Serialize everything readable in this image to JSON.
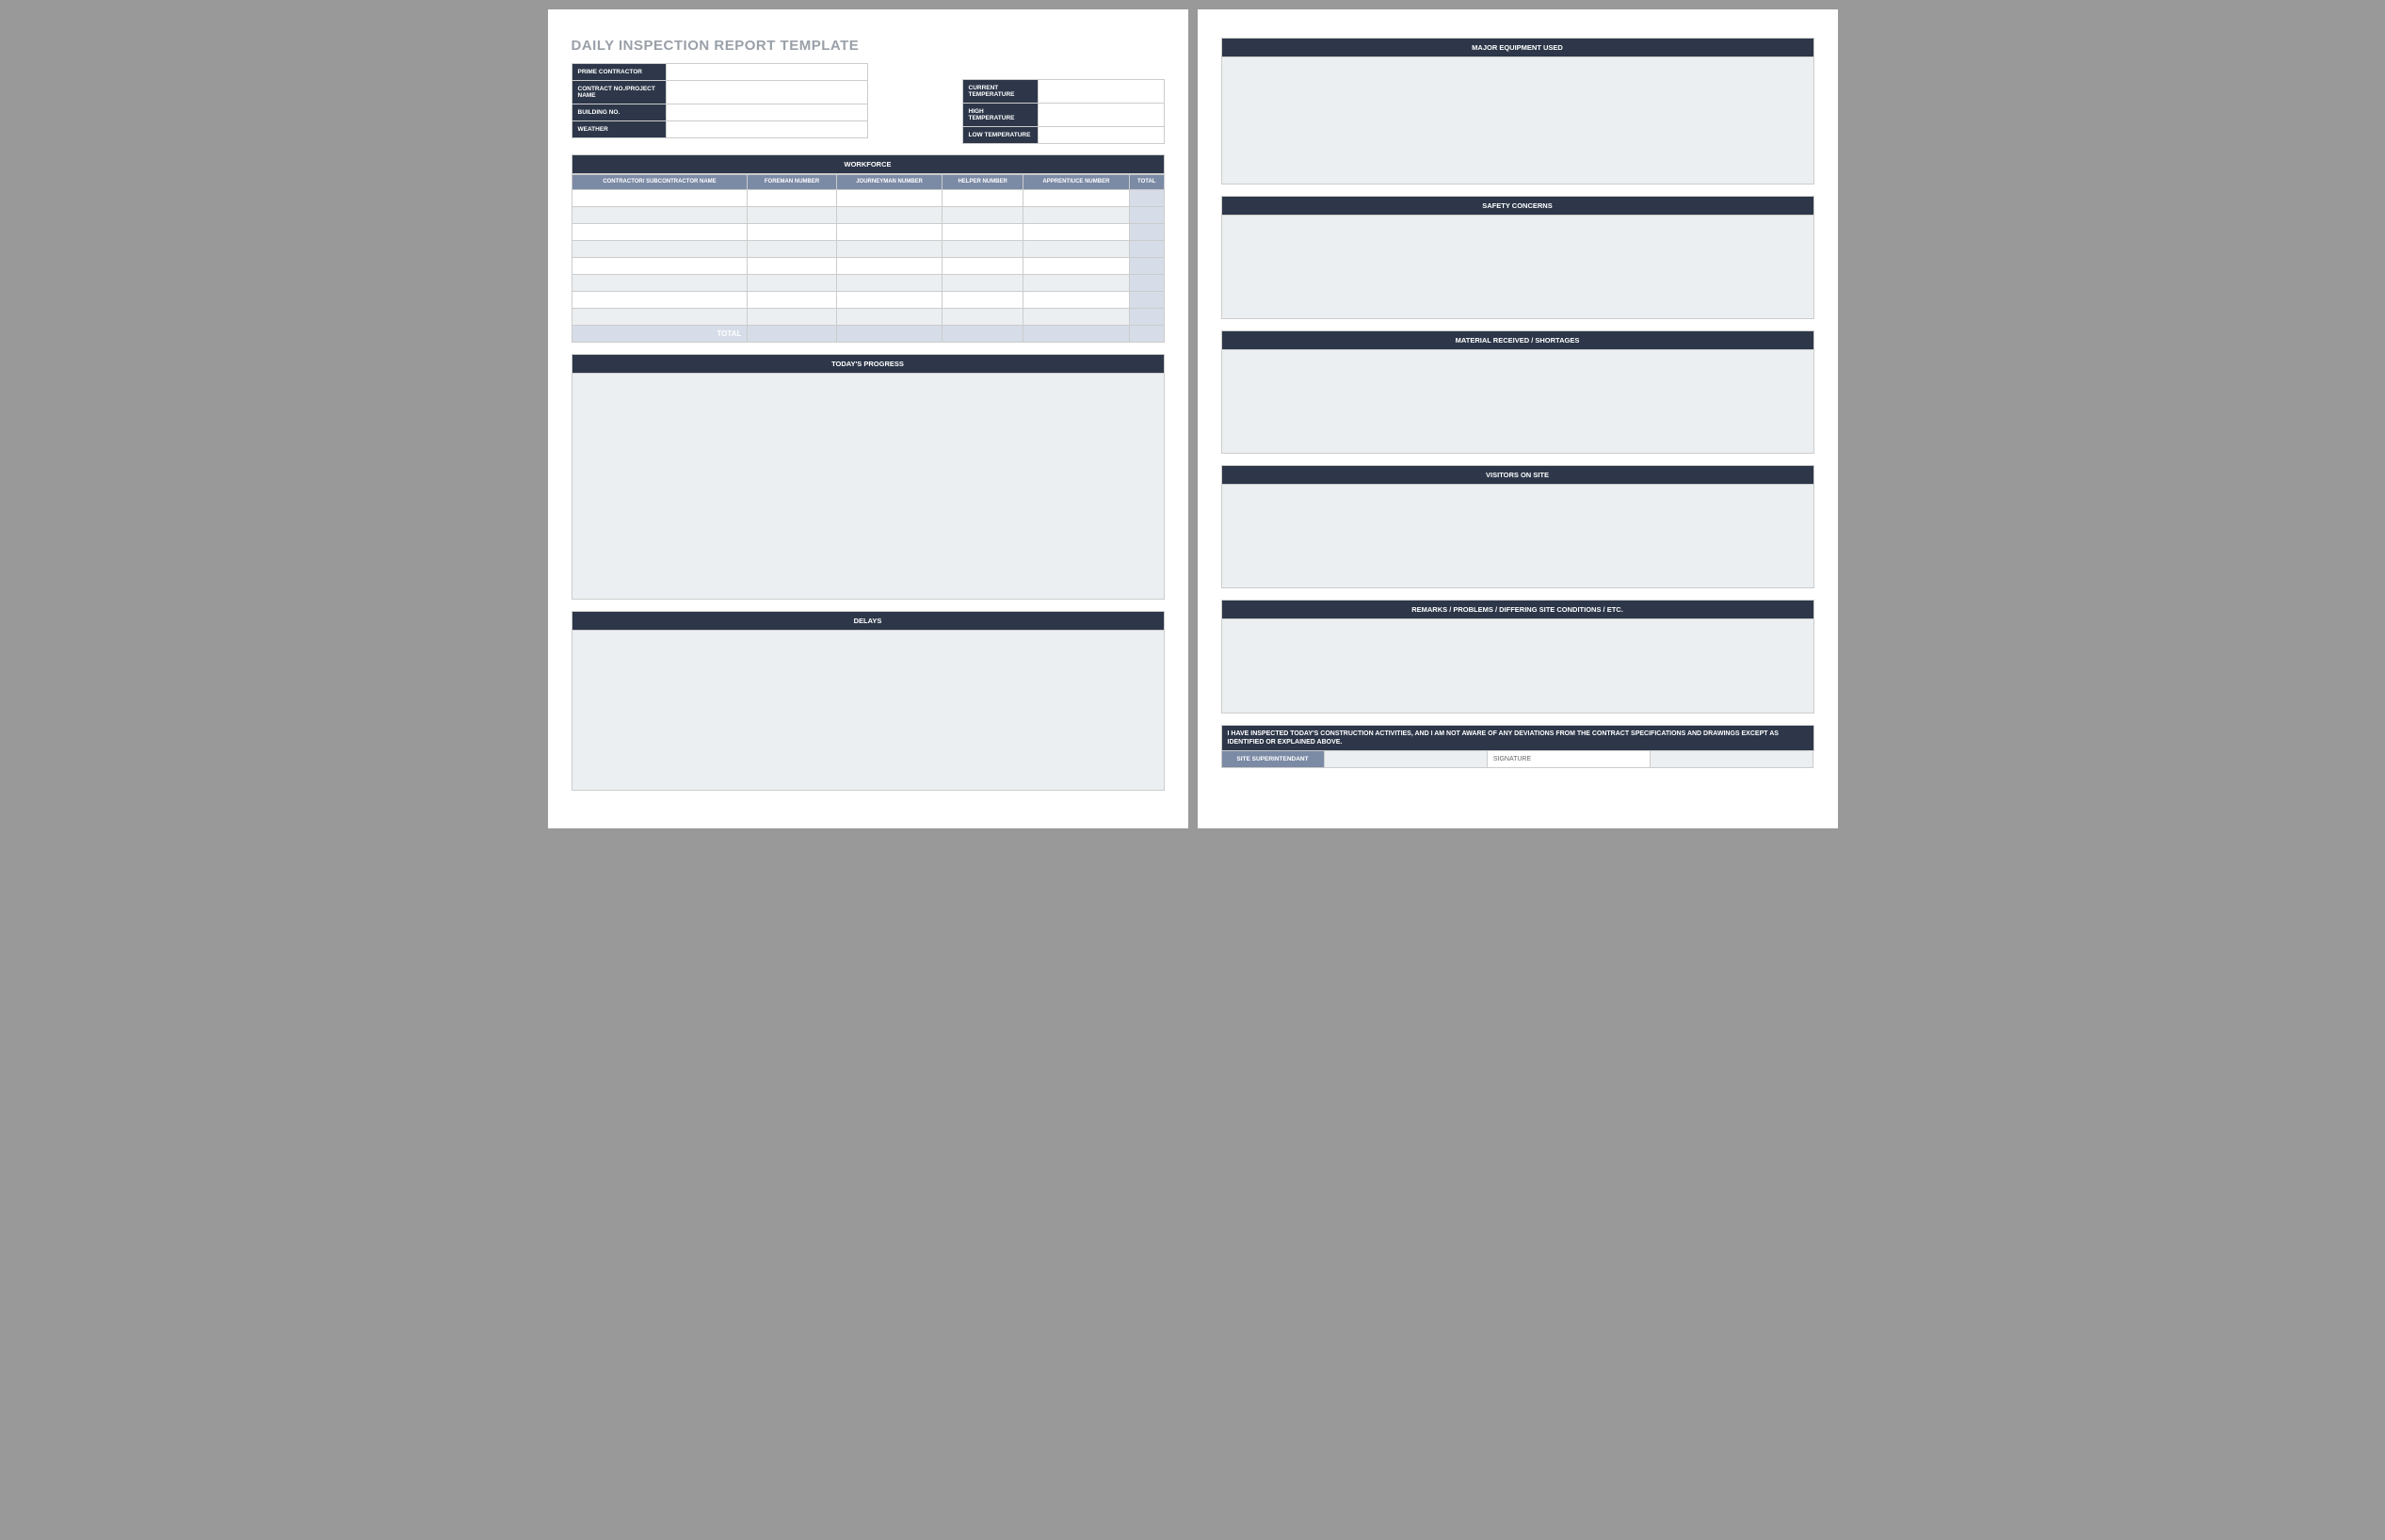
{
  "colors": {
    "page_bg": "#ffffff",
    "outer_bg": "#999999",
    "header_bar": "#2d3749",
    "subheader_bar": "#7b8aa5",
    "light_fill": "#eceff1",
    "total_fill": "#d6dde8",
    "border": "#cccccc",
    "title_text": "#9aa0a8"
  },
  "title": "DAILY INSPECTION REPORT TEMPLATE",
  "info_left": [
    {
      "label": "PRIME CONTRACTOR",
      "value": ""
    },
    {
      "label": "CONTRACT NO./PROJECT NAME",
      "value": ""
    },
    {
      "label": "BUILDING NO.",
      "value": ""
    },
    {
      "label": "WEATHER",
      "value": ""
    }
  ],
  "info_right": [
    {
      "label": "CURRENT TEMPERATURE",
      "value": ""
    },
    {
      "label": "HIGH TEMPERATURE",
      "value": ""
    },
    {
      "label": "LOW TEMPERATURE",
      "value": ""
    }
  ],
  "workforce": {
    "title": "WORKFORCE",
    "columns": [
      "CONTRACTOR/ SUBCONTRACTOR NAME",
      "FOREMAN NUMBER",
      "JOURNEYMAN NUMBER",
      "HELPER NUMBER",
      "APPRENTIUCE NUMBER",
      "TOTAL"
    ],
    "row_count": 8,
    "total_label": "TOTAL"
  },
  "page1_sections": [
    {
      "title": "TODAY'S PROGRESS",
      "body_class": "body-tall"
    },
    {
      "title": "DELAYS",
      "body_class": "body-med"
    }
  ],
  "page2_sections": [
    {
      "title": "MAJOR EQUIPMENT USED",
      "body_class": "body-p2a"
    },
    {
      "title": "SAFETY CONCERNS",
      "body_class": "body-p2b"
    },
    {
      "title": "MATERIAL RECEIVED / SHORTAGES",
      "body_class": "body-p2b"
    },
    {
      "title": "VISITORS ON SITE",
      "body_class": "body-p2b"
    },
    {
      "title": "REMARKS / PROBLEMS / DIFFERING SITE CONDITIONS / ETC.",
      "body_class": "body-p2c"
    }
  ],
  "attestation": "I HAVE INSPECTED TODAY'S CONSTRUCTION ACTIVITIES, AND I AM NOT AWARE OF ANY DEVIATIONS FROM THE CONTRACT SPECIFICATIONS AND DRAWINGS EXCEPT AS IDENTIFIED OR EXPLAINED ABOVE.",
  "signature": {
    "label": "SITE SUPERINTENDANT",
    "sig_label": "SIGNATURE"
  }
}
